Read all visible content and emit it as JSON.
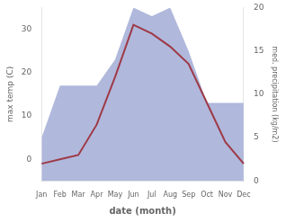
{
  "chart_data": {
    "type": "line",
    "categories": [
      "Jan",
      "Feb",
      "Mar",
      "Apr",
      "May",
      "Jun",
      "Jul",
      "Aug",
      "Sep",
      "Oct",
      "Nov",
      "Dec"
    ],
    "xlabel": "date (month)",
    "ylabel": "max temp (C)",
    "y2label": "med. precipitation (kg/m2)",
    "series": [
      {
        "type": "area",
        "color": "#b0b8dc",
        "axis": "y2",
        "values": [
          5,
          11,
          11,
          11,
          14,
          20,
          19,
          20,
          15,
          9,
          9,
          9
        ]
      },
      {
        "type": "line",
        "color": "#9e3a47",
        "values": [
          -1,
          0,
          1,
          8,
          19,
          31,
          29,
          26,
          22,
          13,
          4,
          -1
        ]
      }
    ],
    "ylim": [
      -5,
      35
    ],
    "yticks": [
      0,
      10,
      20,
      30
    ],
    "y2lim": [
      0,
      20
    ],
    "y2ticks": [
      0,
      5,
      10,
      15,
      20
    ],
    "grid": false
  }
}
